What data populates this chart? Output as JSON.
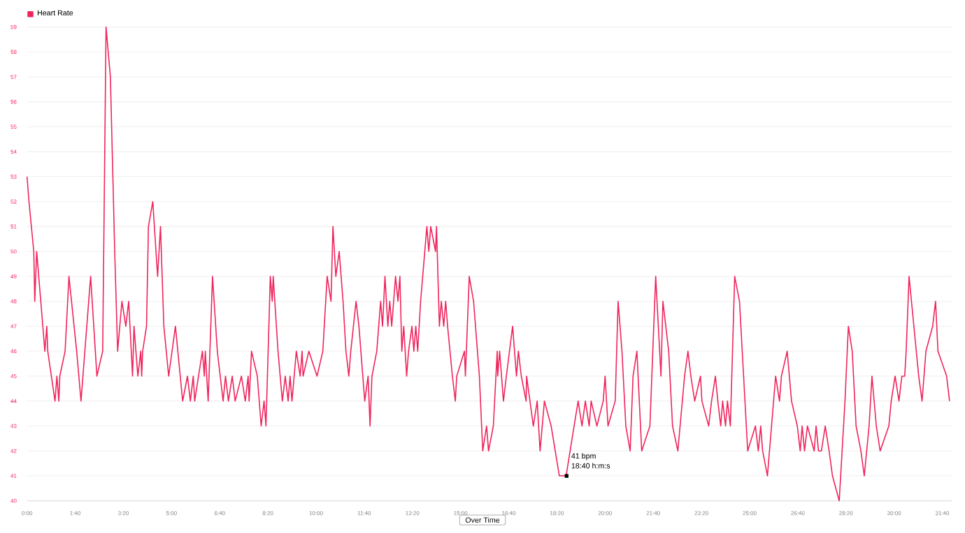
{
  "chart_data": {
    "type": "line",
    "x": [
      0,
      4,
      14,
      16,
      20,
      37,
      41,
      43,
      58,
      62,
      66,
      68,
      79,
      87,
      103,
      112,
      132,
      145,
      157,
      164,
      173,
      182,
      188,
      197,
      205,
      211,
      219,
      222,
      226,
      230,
      236,
      238,
      240,
      248,
      252,
      261,
      271,
      277,
      284,
      294,
      308,
      323,
      333,
      339,
      345,
      348,
      356,
      364,
      368,
      370,
      376,
      385,
      395,
      407,
      412,
      418,
      426,
      432,
      445,
      453,
      459,
      461,
      466,
      478,
      486,
      492,
      496,
      505,
      509,
      511,
      521,
      530,
      536,
      542,
      546,
      550,
      559,
      567,
      571,
      573,
      585,
      602,
      614,
      623,
      631,
      635,
      641,
      648,
      656,
      662,
      668,
      672,
      683,
      689,
      701,
      708,
      712,
      716,
      726,
      730,
      734,
      738,
      743,
      749,
      753,
      757,
      765,
      770,
      774,
      778,
      782,
      788,
      792,
      799,
      803,
      807,
      811,
      817,
      830,
      834,
      838,
      848,
      850,
      856,
      860,
      865,
      869,
      873,
      883,
      889,
      892,
      908,
      910,
      918,
      927,
      935,
      939,
      946,
      954,
      958,
      968,
      976,
      977,
      981,
      989,
      995,
      1008,
      1016,
      1020,
      1026,
      1036,
      1037,
      1051,
      1059,
      1065,
      1074,
      1088,
      1105,
      1119,
      1144,
      1152,
      1159,
      1167,
      1171,
      1183,
      1196,
      1200,
      1206,
      1221,
      1227,
      1235,
      1243,
      1252,
      1258,
      1266,
      1276,
      1293,
      1305,
      1316,
      1320,
      1332,
      1340,
      1351,
      1365,
      1372,
      1378,
      1386,
      1398,
      1401,
      1415,
      1421,
      1429,
      1434,
      1440,
      1444,
      1450,
      1454,
      1460,
      1469,
      1479,
      1496,
      1512,
      1518,
      1523,
      1527,
      1537,
      1554,
      1562,
      1566,
      1578,
      1587,
      1599,
      1605,
      1609,
      1614,
      1620,
      1634,
      1638,
      1643,
      1649,
      1657,
      1665,
      1672,
      1686,
      1698,
      1705,
      1713,
      1721,
      1731,
      1738,
      1748,
      1754,
      1763,
      1771,
      1789,
      1794,
      1802,
      1810,
      1816,
      1822,
      1825,
      1831,
      1841,
      1851,
      1858,
      1866,
      1880,
      1886,
      1891,
      1909,
      1915
    ],
    "series": [
      {
        "name": "Heart Rate",
        "color": "#f0245c",
        "values": [
          53,
          52,
          50,
          48,
          50,
          46,
          47,
          46,
          44,
          45,
          44,
          45,
          46,
          49,
          46,
          44,
          49,
          45,
          46,
          59,
          57,
          50,
          46,
          48,
          47,
          48,
          45,
          47,
          46,
          45,
          46,
          45,
          46,
          47,
          51,
          52,
          49,
          51,
          47,
          45,
          47,
          44,
          45,
          44,
          45,
          44,
          45,
          46,
          45,
          46,
          44,
          49,
          46,
          44,
          45,
          44,
          45,
          44,
          45,
          44,
          45,
          44,
          46,
          45,
          43,
          44,
          43,
          49,
          48,
          49,
          46,
          44,
          45,
          44,
          45,
          44,
          46,
          45,
          46,
          45,
          46,
          45,
          46,
          49,
          48,
          51,
          49,
          50,
          48,
          46,
          45,
          46,
          48,
          47,
          44,
          45,
          43,
          45,
          46,
          47,
          48,
          47,
          49,
          47,
          48,
          47,
          49,
          48,
          49,
          46,
          47,
          45,
          46,
          47,
          46,
          47,
          46,
          48,
          51,
          50,
          51,
          50,
          51,
          47,
          48,
          47,
          48,
          47,
          45,
          44,
          45,
          46,
          45,
          49,
          48,
          46,
          45,
          42,
          43,
          42,
          43,
          46,
          45,
          46,
          44,
          45,
          47,
          45,
          46,
          45,
          44,
          45,
          43,
          44,
          42,
          44,
          43,
          41,
          41,
          44,
          43,
          44,
          43,
          44,
          43,
          44,
          45,
          43,
          44,
          48,
          46,
          43,
          42,
          45,
          46,
          42,
          43,
          49,
          45,
          48,
          46,
          43,
          42,
          45,
          46,
          45,
          44,
          45,
          44,
          43,
          44,
          45,
          44,
          43,
          44,
          43,
          44,
          43,
          49,
          48,
          42,
          43,
          42,
          43,
          42,
          41,
          45,
          44,
          45,
          46,
          44,
          43,
          42,
          43,
          42,
          43,
          42,
          43,
          42,
          42,
          43,
          42,
          41,
          40,
          44,
          47,
          46,
          43,
          42,
          41,
          43,
          45,
          43,
          42,
          43,
          44,
          45,
          44,
          45,
          45,
          46,
          49,
          47,
          45,
          44,
          46,
          47,
          48,
          46,
          45,
          44
        ]
      }
    ],
    "xlim": [
      0,
      1920
    ],
    "ylim": [
      40,
      59
    ],
    "xticks": [
      {
        "value": 0,
        "label": "0:00"
      },
      {
        "value": 100,
        "label": "1:40"
      },
      {
        "value": 200,
        "label": "3:20"
      },
      {
        "value": 300,
        "label": "5:00"
      },
      {
        "value": 400,
        "label": "6:40"
      },
      {
        "value": 500,
        "label": "8:20"
      },
      {
        "value": 600,
        "label": "10:00"
      },
      {
        "value": 700,
        "label": "11:40"
      },
      {
        "value": 800,
        "label": "13:20"
      },
      {
        "value": 900,
        "label": "15:00"
      },
      {
        "value": 1000,
        "label": "16:40"
      },
      {
        "value": 1100,
        "label": "18:20"
      },
      {
        "value": 1200,
        "label": "20:00"
      },
      {
        "value": 1300,
        "label": "21:40"
      },
      {
        "value": 1400,
        "label": "23:20"
      },
      {
        "value": 1500,
        "label": "25:00"
      },
      {
        "value": 1600,
        "label": "26:40"
      },
      {
        "value": 1700,
        "label": "28:20"
      },
      {
        "value": 1800,
        "label": "30:00"
      },
      {
        "value": 1900,
        "label": "31:40"
      }
    ],
    "yticks": [
      40,
      41,
      42,
      43,
      44,
      45,
      46,
      47,
      48,
      49,
      50,
      51,
      52,
      53,
      54,
      55,
      56,
      57,
      58,
      59
    ],
    "grid": "y",
    "legend": "top left",
    "marker": "none",
    "line_style": "solid",
    "annotations": [
      {
        "text": "41 bpm",
        "x": 1120,
        "y": 41
      },
      {
        "text": "18:40 h:m:s",
        "x": 1120,
        "y": 41
      },
      "Over Time"
    ]
  }
}
